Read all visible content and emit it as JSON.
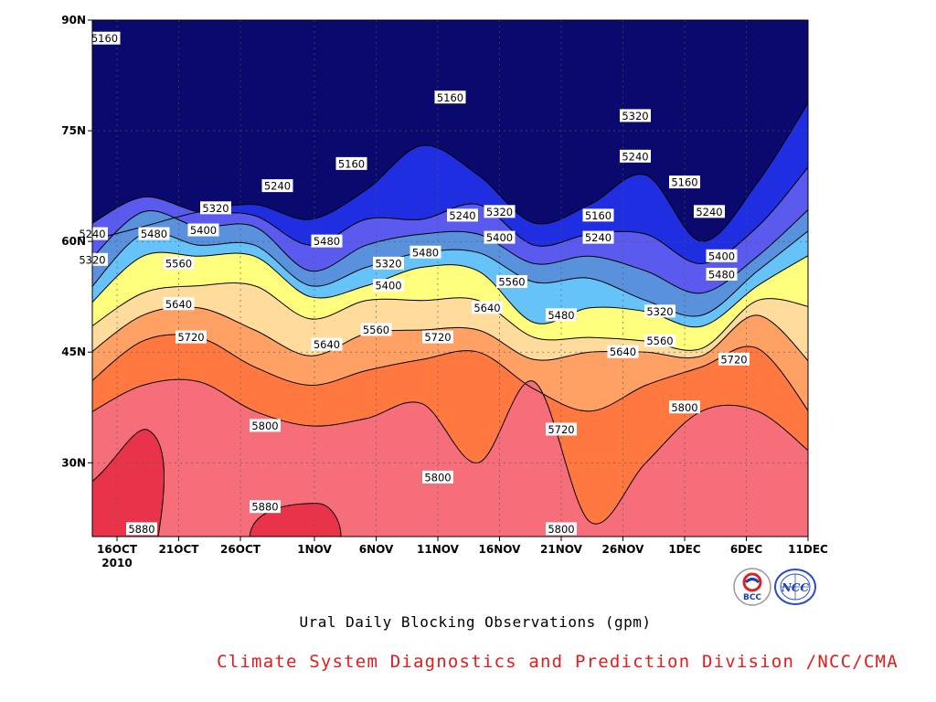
{
  "chart_data": {
    "type": "heatmap",
    "title": "Ural Daily Blocking Observations (gpm)",
    "credit": "Climate System Diagnostics and Prediction Division /NCC/CMA",
    "x_ticks": [
      "16OCT",
      "21OCT",
      "26OCT",
      "1NOV",
      "6NOV",
      "11NOV",
      "16NOV",
      "21NOV",
      "26NOV",
      "1DEC",
      "6DEC",
      "11DEC"
    ],
    "x_year_label": "2010",
    "x_range": [
      "2010-10-14",
      "2010-12-11"
    ],
    "y_ticks": [
      "30N",
      "45N",
      "60N",
      "75N",
      "90N"
    ],
    "y_range": [
      20,
      90
    ],
    "levels": [
      5160,
      5240,
      5320,
      5400,
      5480,
      5560,
      5640,
      5720,
      5800,
      5880
    ],
    "fill_colors": [
      "#0a0a6e",
      "#1f2ee0",
      "#5a5aef",
      "#5a91dc",
      "#66c3f9",
      "#ffff7d",
      "#ffdc9b",
      "#ffa064",
      "#ff7840",
      "#f76e7b",
      "#e8334a"
    ],
    "grid": "dashed",
    "contours": [
      {
        "level": 5160,
        "lat": [
          60,
          62,
          64,
          65,
          63,
          67,
          73,
          69,
          62.5,
          65,
          69,
          60,
          68,
          80
        ]
      },
      {
        "level": 5240,
        "lat": [
          62,
          66,
          64,
          63.5,
          59.5,
          63,
          63,
          65,
          59.5,
          61,
          61,
          57,
          62,
          71
        ]
      },
      {
        "level": 5320,
        "lat": [
          57,
          64,
          62,
          62,
          56,
          59.5,
          61,
          61,
          57,
          58,
          56,
          53,
          58,
          65
        ]
      },
      {
        "level": 5400,
        "lat": [
          53,
          61,
          59.5,
          59.5,
          54,
          56.5,
          58.5,
          58.5,
          54.5,
          55,
          52,
          50,
          56,
          62
        ]
      },
      {
        "level": 5480,
        "lat": [
          51,
          58,
          58,
          58,
          52.5,
          54,
          56.5,
          56,
          49,
          51,
          50.5,
          48.5,
          54,
          58.5
        ]
      },
      {
        "level": 5560,
        "lat": [
          48,
          53,
          54,
          54,
          49.5,
          52,
          52,
          52,
          47,
          47,
          46.5,
          45.5,
          52,
          51
        ]
      },
      {
        "level": 5640,
        "lat": [
          44.5,
          50,
          51,
          48,
          44.5,
          47.5,
          48,
          48,
          44,
          45,
          45,
          44.5,
          50,
          43
        ]
      },
      {
        "level": 5720,
        "lat": [
          40.5,
          46.5,
          47,
          43,
          40.5,
          42.5,
          44,
          45,
          40,
          37,
          40.5,
          43,
          45.5,
          36
        ]
      },
      {
        "level": 5800,
        "lat": [
          36.5,
          40.5,
          41,
          37,
          35,
          36,
          38,
          30,
          41,
          22,
          30,
          37,
          37,
          31
        ]
      },
      {
        "level": 5880,
        "lat": [
          21,
          32,
          30,
          20
        ]
      }
    ],
    "contour_labels": [
      {
        "text": "5160",
        "date": "2010-10-15",
        "lat": 87.5
      },
      {
        "text": "5160",
        "date": "2010-11-04",
        "lat": 70.5
      },
      {
        "text": "5160",
        "date": "2010-11-12",
        "lat": 79.5
      },
      {
        "text": "5160",
        "date": "2010-11-24",
        "lat": 63.5
      },
      {
        "text": "5160",
        "date": "2010-12-01",
        "lat": 68
      },
      {
        "text": "5240",
        "date": "2010-10-14",
        "lat": 61
      },
      {
        "text": "5240",
        "date": "2010-10-29",
        "lat": 67.5
      },
      {
        "text": "5240",
        "date": "2010-11-13",
        "lat": 63.5
      },
      {
        "text": "5240",
        "date": "2010-11-24",
        "lat": 60.5
      },
      {
        "text": "5240",
        "date": "2010-11-27",
        "lat": 71.5
      },
      {
        "text": "5240",
        "date": "2010-12-03",
        "lat": 64
      },
      {
        "text": "5320",
        "date": "2010-10-14",
        "lat": 57.5
      },
      {
        "text": "5320",
        "date": "2010-10-24",
        "lat": 64.5
      },
      {
        "text": "5320",
        "date": "2010-11-07",
        "lat": 57
      },
      {
        "text": "5320",
        "date": "2010-11-16",
        "lat": 64
      },
      {
        "text": "5320",
        "date": "2010-11-27",
        "lat": 77
      },
      {
        "text": "5320",
        "date": "2010-11-29",
        "lat": 50.5
      },
      {
        "text": "5400",
        "date": "2010-10-23",
        "lat": 61.5
      },
      {
        "text": "5400",
        "date": "2010-11-07",
        "lat": 54
      },
      {
        "text": "5400",
        "date": "2010-11-16",
        "lat": 60.5
      },
      {
        "text": "5400",
        "date": "2010-12-04",
        "lat": 58
      },
      {
        "text": "5480",
        "date": "2010-10-19",
        "lat": 61
      },
      {
        "text": "5480",
        "date": "2010-11-02",
        "lat": 60
      },
      {
        "text": "5480",
        "date": "2010-11-10",
        "lat": 58.5
      },
      {
        "text": "5480",
        "date": "2010-11-21",
        "lat": 50
      },
      {
        "text": "5480",
        "date": "2010-12-04",
        "lat": 55.5
      },
      {
        "text": "5560",
        "date": "2010-10-21",
        "lat": 57
      },
      {
        "text": "5560",
        "date": "2010-11-06",
        "lat": 48
      },
      {
        "text": "5560",
        "date": "2010-11-17",
        "lat": 54.5
      },
      {
        "text": "5560",
        "date": "2010-11-29",
        "lat": 46.5
      },
      {
        "text": "5640",
        "date": "2010-10-21",
        "lat": 51.5
      },
      {
        "text": "5640",
        "date": "2010-11-02",
        "lat": 46
      },
      {
        "text": "5640",
        "date": "2010-11-15",
        "lat": 51
      },
      {
        "text": "5640",
        "date": "2010-11-26",
        "lat": 45
      },
      {
        "text": "5720",
        "date": "2010-10-22",
        "lat": 47
      },
      {
        "text": "5720",
        "date": "2010-11-11",
        "lat": 47
      },
      {
        "text": "5720",
        "date": "2010-11-21",
        "lat": 34.5
      },
      {
        "text": "5720",
        "date": "2010-12-05",
        "lat": 44
      },
      {
        "text": "5800",
        "date": "2010-10-28",
        "lat": 35
      },
      {
        "text": "5800",
        "date": "2010-11-11",
        "lat": 28
      },
      {
        "text": "5800",
        "date": "2010-11-21",
        "lat": 21
      },
      {
        "text": "5800",
        "date": "2010-12-01",
        "lat": 37.5
      },
      {
        "text": "5880",
        "date": "2010-10-18",
        "lat": 21
      },
      {
        "text": "5880",
        "date": "2010-10-28",
        "lat": 24
      }
    ]
  },
  "logos": [
    {
      "name": "BCC",
      "text": "BCC"
    },
    {
      "name": "NCC",
      "text": "NCC"
    }
  ]
}
